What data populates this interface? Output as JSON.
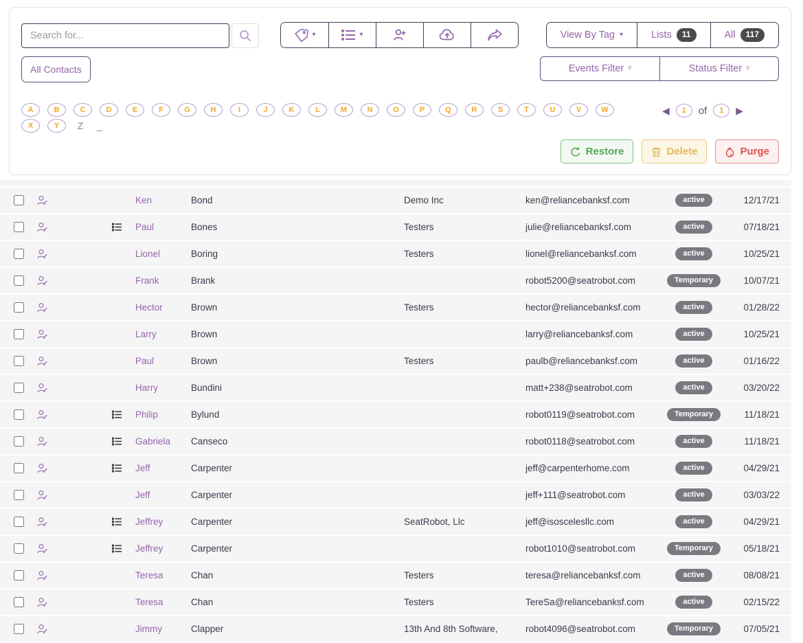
{
  "toolbar": {
    "search_placeholder": "Search for...",
    "view_by_tag_label": "View By Tag",
    "lists_label": "Lists",
    "lists_count": "11",
    "all_label": "All",
    "all_count": "117",
    "all_contacts_label": "All Contacts",
    "events_filter_label": "Events Filter",
    "status_filter_label": "Status Filter",
    "icon_buttons": [
      "tag-menu",
      "list-menu",
      "add-contact",
      "upload",
      "share"
    ]
  },
  "alphabet": {
    "circled": [
      "A",
      "B",
      "C",
      "D",
      "E",
      "F",
      "G",
      "H",
      "I",
      "J",
      "K",
      "L",
      "M",
      "N",
      "O",
      "P",
      "Q",
      "R",
      "S",
      "T",
      "U",
      "V",
      "W",
      "X",
      "Y"
    ],
    "plain": [
      "Z",
      "_"
    ]
  },
  "pagination": {
    "current": "1",
    "of_label": "of",
    "total": "1"
  },
  "actions": {
    "restore_label": "Restore",
    "delete_label": "Delete",
    "purge_label": "Purge"
  },
  "colors": {
    "accent_purple": "#9565ab",
    "dark_border": "#453a55",
    "letter_orange": "#f2a71f",
    "badge_gray": "#7b7980",
    "restore_green": "#57a85a",
    "delete_yellow": "#e5ba58",
    "purge_red": "#d9534f",
    "row_bg": "#f5f5f6"
  },
  "table": {
    "rows": [
      {
        "first": "Ken",
        "last": "Bond",
        "company": "Demo Inc",
        "email": "ken@reliancebanksf.com",
        "status": "active",
        "date": "12/17/21",
        "has_list": false
      },
      {
        "first": "Paul",
        "last": "Bones",
        "company": "Testers",
        "email": "julie@reliancebanksf.com",
        "status": "active",
        "date": "07/18/21",
        "has_list": true
      },
      {
        "first": "Lionel",
        "last": "Boring",
        "company": "Testers",
        "email": "lionel@reliancebanksf.com",
        "status": "active",
        "date": "10/25/21",
        "has_list": false
      },
      {
        "first": "Frank",
        "last": "Brank",
        "company": "",
        "email": "robot5200@seatrobot.com",
        "status": "Temporary",
        "date": "10/07/21",
        "has_list": false
      },
      {
        "first": "Hector",
        "last": "Brown",
        "company": "Testers",
        "email": "hector@reliancebanksf.com",
        "status": "active",
        "date": "01/28/22",
        "has_list": false
      },
      {
        "first": "Larry",
        "last": "Brown",
        "company": "",
        "email": "larry@reliancebanksf.com",
        "status": "active",
        "date": "10/25/21",
        "has_list": false
      },
      {
        "first": "Paul",
        "last": "Brown",
        "company": "Testers",
        "email": "paulb@reliancebanksf.com",
        "status": "active",
        "date": "01/16/22",
        "has_list": false
      },
      {
        "first": "Harry",
        "last": "Bundini",
        "company": "",
        "email": "matt+238@seatrobot.com",
        "status": "active",
        "date": "03/20/22",
        "has_list": false
      },
      {
        "first": "Philip",
        "last": "Bylund",
        "company": "",
        "email": "robot0119@seatrobot.com",
        "status": "Temporary",
        "date": "11/18/21",
        "has_list": true
      },
      {
        "first": "Gabriela",
        "last": "Canseco",
        "company": "",
        "email": "robot0118@seatrobot.com",
        "status": "active",
        "date": "11/18/21",
        "has_list": true
      },
      {
        "first": "Jeff",
        "last": "Carpenter",
        "company": "",
        "email": "jeff@carpenterhome.com",
        "status": "active",
        "date": "04/29/21",
        "has_list": true
      },
      {
        "first": "Jeff",
        "last": "Carpenter",
        "company": "",
        "email": "jeff+111@seatrobot.com",
        "status": "active",
        "date": "03/03/22",
        "has_list": false
      },
      {
        "first": "Jeffrey",
        "last": "Carpenter",
        "company": "SeatRobot, Llc",
        "email": "jeff@isoscelesllc.com",
        "status": "active",
        "date": "04/29/21",
        "has_list": true
      },
      {
        "first": "Jeffrey",
        "last": "Carpenter",
        "company": "",
        "email": "robot1010@seatrobot.com",
        "status": "Temporary",
        "date": "05/18/21",
        "has_list": true
      },
      {
        "first": "Teresa",
        "last": "Chan",
        "company": "Testers",
        "email": "teresa@reliancebanksf.com",
        "status": "active",
        "date": "08/08/21",
        "has_list": false
      },
      {
        "first": "Teresa",
        "last": "Chan",
        "company": "Testers",
        "email": "TereSa@reliancebanksf.com",
        "status": "active",
        "date": "02/15/22",
        "has_list": false
      },
      {
        "first": "Jimmy",
        "last": "Clapper",
        "company": "13th And 8th Software,",
        "email": "robot4096@seatrobot.com",
        "status": "Temporary",
        "date": "07/05/21",
        "has_list": false
      }
    ]
  }
}
